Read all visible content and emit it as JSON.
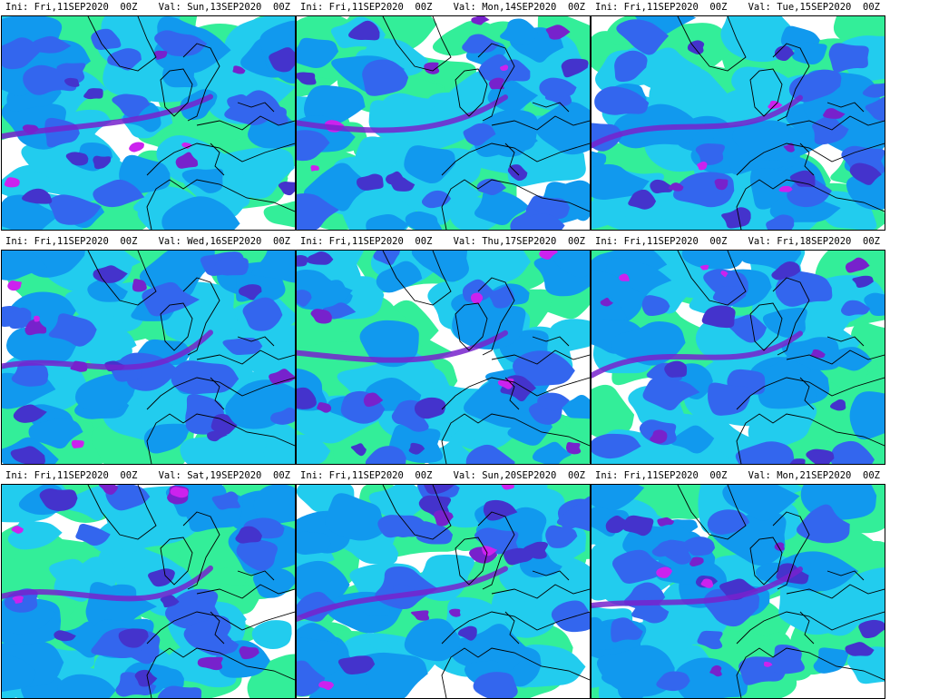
{
  "header_prefix": {
    "ini": "Ini:",
    "val": "Val:"
  },
  "colors": {
    "background": "#ffffff",
    "border": "#000000",
    "coast": "#000000",
    "level_1": "#33ee99",
    "level_2": "#22ccee",
    "level_3": "#1199ee",
    "level_4": "#3366ee",
    "level_5": "#4433cc",
    "level_6": "#7722cc",
    "level_7": "#cc22ee"
  },
  "panels": [
    {
      "ini": "Fri,11SEP2020  00Z",
      "val": "Sun,13SEP2020  00Z"
    },
    {
      "ini": "Fri,11SEP2020  00Z",
      "val": "Mon,14SEP2020  00Z"
    },
    {
      "ini": "Fri,11SEP2020  00Z",
      "val": "Tue,15SEP2020  00Z"
    },
    {
      "ini": "Fri,11SEP2020  00Z",
      "val": "Wed,16SEP2020  00Z"
    },
    {
      "ini": "Fri,11SEP2020  00Z",
      "val": "Thu,17SEP2020  00Z"
    },
    {
      "ini": "Fri,11SEP2020  00Z",
      "val": "Fri,18SEP2020  00Z"
    },
    {
      "ini": "Fri,11SEP2020  00Z",
      "val": "Sat,19SEP2020  00Z"
    },
    {
      "ini": "Fri,11SEP2020  00Z",
      "val": "Sun,20SEP2020  00Z"
    },
    {
      "ini": "Fri,11SEP2020  00Z",
      "val": "Mon,21SEP2020  00Z"
    }
  ]
}
